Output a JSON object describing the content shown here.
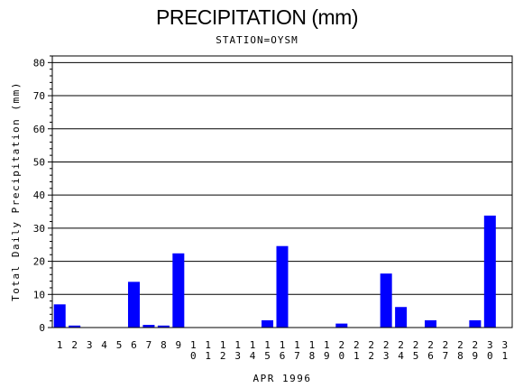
{
  "title": "PRECIPITATION (mm)",
  "subtitle": "STATION=OYSM",
  "chart_data": {
    "type": "bar",
    "xlabel": "APR 1996",
    "ylabel": "Total Daily Precipitation (mm)",
    "ylim": [
      0,
      82
    ],
    "yticks": [
      0,
      10,
      20,
      30,
      40,
      50,
      60,
      70,
      80
    ],
    "grid": true,
    "bar_color": "#0000ff",
    "categories": [
      "1",
      "2",
      "3",
      "4",
      "5",
      "6",
      "7",
      "8",
      "9",
      "10",
      "11",
      "12",
      "13",
      "14",
      "15",
      "16",
      "17",
      "18",
      "19",
      "20",
      "21",
      "22",
      "23",
      "24",
      "25",
      "26",
      "27",
      "28",
      "29",
      "30",
      "31"
    ],
    "values": [
      7.0,
      0.6,
      0,
      0,
      0,
      13.8,
      0.8,
      0.6,
      22.4,
      0,
      0,
      0,
      0,
      0,
      2.2,
      24.6,
      0,
      0,
      0,
      1.2,
      0,
      0,
      16.3,
      6.2,
      0,
      2.2,
      0,
      0,
      2.2,
      33.8,
      0
    ]
  }
}
